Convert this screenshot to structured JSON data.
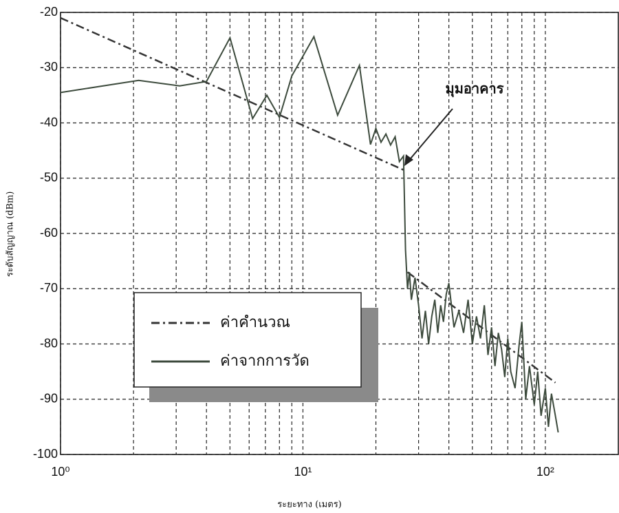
{
  "chart_data": {
    "type": "line",
    "xlabel": "ระยะทาง (เมตร)",
    "ylabel": "ระดับสัญญาณ (dBm)",
    "annotation": "มุมอาคาร",
    "xscale": "log",
    "xlim": [
      1,
      200
    ],
    "ylim": [
      -100,
      -20
    ],
    "xticks": [
      {
        "value": 1,
        "label": "10⁰"
      },
      {
        "value": 10,
        "label": "10¹"
      },
      {
        "value": 100,
        "label": "10²"
      }
    ],
    "xminor_ticks": [
      2,
      3,
      4,
      5,
      6,
      7,
      8,
      9,
      20,
      30,
      40,
      50,
      60,
      70,
      80,
      90
    ],
    "yticks": [
      -20,
      -30,
      -40,
      -50,
      -60,
      -70,
      -80,
      -90,
      -100
    ],
    "grid": true,
    "legend": "lower left",
    "series": [
      {
        "name": "ค่าคำนวณ",
        "color": "#333333",
        "style": "dashdot",
        "x": [
          1,
          26,
          26.5,
          27,
          110
        ],
        "values": [
          -21,
          -48.5,
          null,
          -67,
          -87
        ]
      },
      {
        "name": "ค่าจากการวัด",
        "color": "#3c4a3c",
        "style": "solid",
        "x": [
          1,
          2.1,
          3.1,
          4,
          5,
          6.2,
          7.1,
          8,
          9,
          11.1,
          13.9,
          17.1,
          19,
          20,
          21,
          22,
          23,
          24,
          25,
          26,
          26.5,
          27,
          27.5,
          28,
          29,
          30,
          31,
          32,
          33,
          34,
          35,
          36,
          37,
          38,
          39,
          40,
          42,
          44,
          46,
          48,
          50,
          52,
          54,
          56,
          58,
          60,
          62,
          64,
          66,
          68,
          70,
          72,
          75,
          78,
          80,
          83,
          86,
          90,
          93,
          96,
          100,
          103,
          106,
          110,
          113
        ],
        "values": [
          -34.5,
          -32.3,
          -33.3,
          -32.5,
          -24.6,
          -39.2,
          -35,
          -39,
          -31.5,
          -24.4,
          -38.6,
          -29.6,
          -43.9,
          -41,
          -43.5,
          -42,
          -44,
          -42.5,
          -47,
          -46,
          -63,
          -70,
          -67,
          -72,
          -68,
          -73,
          -79,
          -74,
          -80,
          -75,
          -72,
          -78,
          -73,
          -76,
          -71,
          -69,
          -77,
          -74,
          -78,
          -72,
          -80,
          -75,
          -79,
          -73,
          -82,
          -77,
          -84,
          -78,
          -81,
          -86,
          -79,
          -85,
          -88,
          -80,
          -76,
          -90,
          -84,
          -91,
          -85,
          -93,
          -88,
          -95,
          -89,
          -93,
          -96
        ]
      }
    ]
  }
}
